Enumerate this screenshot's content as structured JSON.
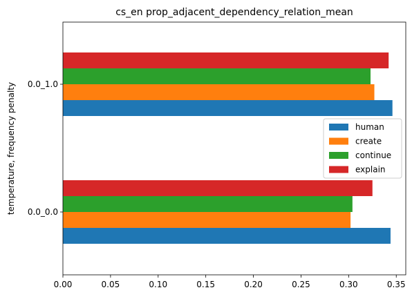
{
  "chart_data": {
    "type": "bar",
    "orientation": "horizontal",
    "title": "cs_en prop_adjacent_dependency_relation_mean",
    "xlabel": "",
    "ylabel": "temperature, frequency penalty",
    "categories": [
      "0.0_0.0",
      "0.0_1.0"
    ],
    "xlim": [
      0,
      0.36
    ],
    "xticks": [
      0.0,
      0.05,
      0.1,
      0.15,
      0.2,
      0.25,
      0.3,
      0.35
    ],
    "xtick_labels": [
      "0.00",
      "0.05",
      "0.10",
      "0.15",
      "0.20",
      "0.25",
      "0.30",
      "0.35"
    ],
    "series": [
      {
        "name": "human",
        "color": "#1f77b4",
        "values": [
          0.344,
          0.346
        ]
      },
      {
        "name": "create",
        "color": "#ff7f0e",
        "values": [
          0.302,
          0.327
        ]
      },
      {
        "name": "continue",
        "color": "#2ca02c",
        "values": [
          0.304,
          0.323
        ]
      },
      {
        "name": "explain",
        "color": "#d62728",
        "values": [
          0.325,
          0.342
        ]
      }
    ],
    "legend": {
      "placement": "center-right"
    },
    "grid": false
  }
}
